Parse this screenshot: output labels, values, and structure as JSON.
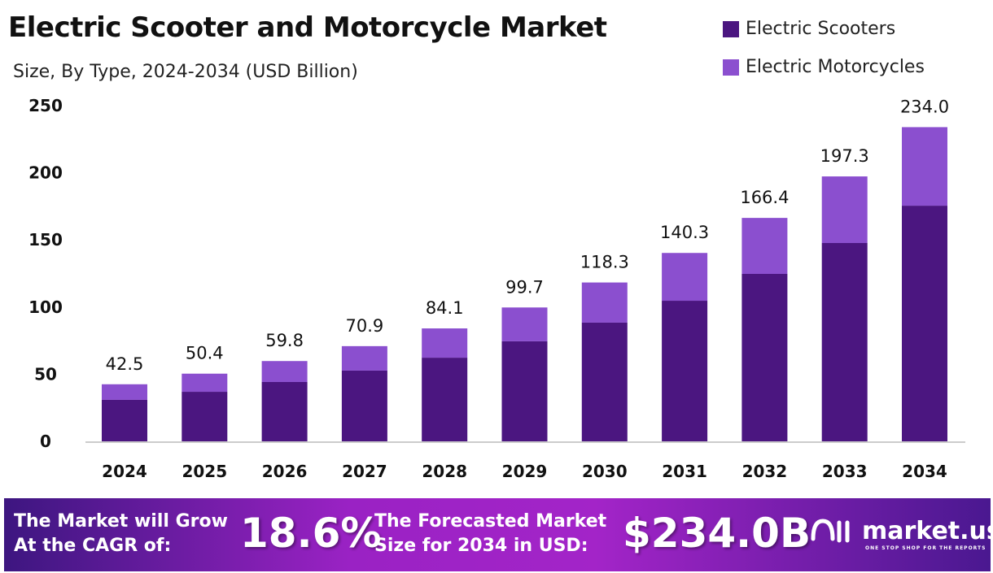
{
  "chart_data": {
    "type": "bar",
    "stacked": true,
    "title": "Electric Scooter and Motorcycle Market",
    "subtitle": "Size, By Type, 2024-2034 (USD Billion)",
    "categories": [
      "2024",
      "2025",
      "2026",
      "2027",
      "2028",
      "2029",
      "2030",
      "2031",
      "2032",
      "2033",
      "2034"
    ],
    "series": [
      {
        "name": "Electric Scooters",
        "color": "#4b1680",
        "values": [
          30.9,
          36.9,
          44.2,
          52.7,
          62.3,
          74.5,
          88.4,
          104.7,
          124.7,
          147.7,
          175.5
        ]
      },
      {
        "name": "Electric Motorcycles",
        "color": "#8b4fcf",
        "values": [
          11.6,
          13.5,
          15.6,
          18.2,
          21.8,
          25.2,
          29.9,
          35.6,
          41.7,
          49.6,
          58.5
        ]
      }
    ],
    "totals": [
      "42.5",
      "50.4",
      "59.8",
      "70.9",
      "84.1",
      "99.7",
      "118.3",
      "140.3",
      "166.4",
      "197.3",
      "234.0"
    ],
    "yticks": [
      "0",
      "50",
      "100",
      "150",
      "200",
      "250"
    ],
    "ylim": [
      0,
      250
    ],
    "grid": false,
    "legend": "top-right"
  },
  "banner": {
    "grow_text_1": "The Market will Grow",
    "grow_text_2": "At the CAGR of:",
    "cagr": "18.6%",
    "forecast_text_1": "The Forecasted Market",
    "forecast_text_2": "Size for 2034 in USD:",
    "forecast_value": "$234.0B",
    "logo": "market.us",
    "logo_tagline": "ONE STOP SHOP FOR THE REPORTS"
  }
}
